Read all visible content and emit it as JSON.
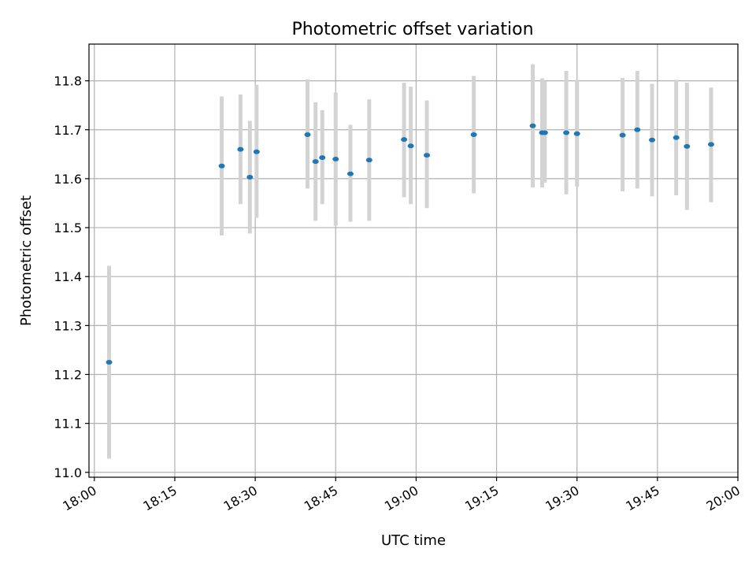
{
  "chart_data": {
    "type": "scatter",
    "title": "Photometric offset variation",
    "xlabel": "UTC time",
    "ylabel": "Photometric offset",
    "grid": true,
    "legend": "none",
    "colors": {
      "point": "#1f77b4",
      "errorbar": "#d3d3d3",
      "grid": "#b0b0b0",
      "axes": "#000000"
    },
    "xlim": [
      "17:59",
      "20:00"
    ],
    "ylim": [
      10.99,
      11.875
    ],
    "x_ticks": [
      "18:00",
      "18:15",
      "18:30",
      "18:45",
      "19:00",
      "19:15",
      "19:30",
      "19:45",
      "20:00"
    ],
    "y_ticks": [
      "11.0",
      "11.1",
      "11.2",
      "11.3",
      "11.4",
      "11.5",
      "11.6",
      "11.7",
      "11.8"
    ],
    "points": [
      {
        "x": "18:02:45",
        "y": 11.225,
        "ylow": 11.028,
        "yhigh": 11.422
      },
      {
        "x": "18:23:45",
        "y": 11.626,
        "ylow": 11.484,
        "yhigh": 11.768
      },
      {
        "x": "18:27:15",
        "y": 11.66,
        "ylow": 11.548,
        "yhigh": 11.772
      },
      {
        "x": "18:29:00",
        "y": 11.603,
        "ylow": 11.488,
        "yhigh": 11.718
      },
      {
        "x": "18:30:15",
        "y": 11.655,
        "ylow": 11.52,
        "yhigh": 11.792
      },
      {
        "x": "18:39:45",
        "y": 11.69,
        "ylow": 11.58,
        "yhigh": 11.803
      },
      {
        "x": "18:41:15",
        "y": 11.635,
        "ylow": 11.514,
        "yhigh": 11.756
      },
      {
        "x": "18:42:30",
        "y": 11.643,
        "ylow": 11.548,
        "yhigh": 11.74
      },
      {
        "x": "18:45:00",
        "y": 11.64,
        "ylow": 11.504,
        "yhigh": 11.776
      },
      {
        "x": "18:47:45",
        "y": 11.61,
        "ylow": 11.512,
        "yhigh": 11.71
      },
      {
        "x": "18:51:15",
        "y": 11.638,
        "ylow": 11.514,
        "yhigh": 11.762
      },
      {
        "x": "18:57:45",
        "y": 11.68,
        "ylow": 11.562,
        "yhigh": 11.796
      },
      {
        "x": "18:59:00",
        "y": 11.667,
        "ylow": 11.548,
        "yhigh": 11.788
      },
      {
        "x": "19:02:00",
        "y": 11.648,
        "ylow": 11.54,
        "yhigh": 11.76
      },
      {
        "x": "19:10:45",
        "y": 11.69,
        "ylow": 11.57,
        "yhigh": 11.81
      },
      {
        "x": "19:21:45",
        "y": 11.708,
        "ylow": 11.582,
        "yhigh": 11.834
      },
      {
        "x": "19:23:30",
        "y": 11.694,
        "ylow": 11.582,
        "yhigh": 11.805
      },
      {
        "x": "19:24:00",
        "y": 11.694,
        "ylow": 11.592,
        "yhigh": 11.8
      },
      {
        "x": "19:28:00",
        "y": 11.694,
        "ylow": 11.568,
        "yhigh": 11.82
      },
      {
        "x": "19:30:00",
        "y": 11.692,
        "ylow": 11.584,
        "yhigh": 11.802
      },
      {
        "x": "19:38:30",
        "y": 11.689,
        "ylow": 11.574,
        "yhigh": 11.806
      },
      {
        "x": "19:41:15",
        "y": 11.7,
        "ylow": 11.58,
        "yhigh": 11.82
      },
      {
        "x": "19:44:00",
        "y": 11.679,
        "ylow": 11.564,
        "yhigh": 11.794
      },
      {
        "x": "19:48:30",
        "y": 11.684,
        "ylow": 11.566,
        "yhigh": 11.802
      },
      {
        "x": "19:50:30",
        "y": 11.666,
        "ylow": 11.536,
        "yhigh": 11.796
      },
      {
        "x": "19:55:00",
        "y": 11.67,
        "ylow": 11.552,
        "yhigh": 11.786
      }
    ]
  }
}
